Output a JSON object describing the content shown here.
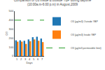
{
  "chart_data": {
    "type": "bar",
    "title": "Comparison of O3 inside & outside YBP during daytime",
    "subtitle": "(10:00a.m-6:00 p.m) in August,2009",
    "xlabel": "Days",
    "ylabel": "O3",
    "categories": [
      1,
      2,
      3,
      4,
      5,
      6,
      7
    ],
    "series": [
      {
        "name": "O3 (µg/m3) Outside YBP",
        "values": [
          175,
          175,
          170,
          185,
          210,
          215,
          195
        ]
      },
      {
        "name": "O3 (µg/m3) Inside YBP",
        "values": [
          160,
          160,
          135,
          165,
          185,
          170,
          155
        ]
      }
    ],
    "hline": {
      "name": "O3 (µg/m3 permissible limit)",
      "value": 400
    },
    "ylim": [
      0,
      500
    ],
    "yticks": [
      0,
      100,
      200,
      300,
      400,
      500
    ],
    "grid": false,
    "legend": "right"
  }
}
